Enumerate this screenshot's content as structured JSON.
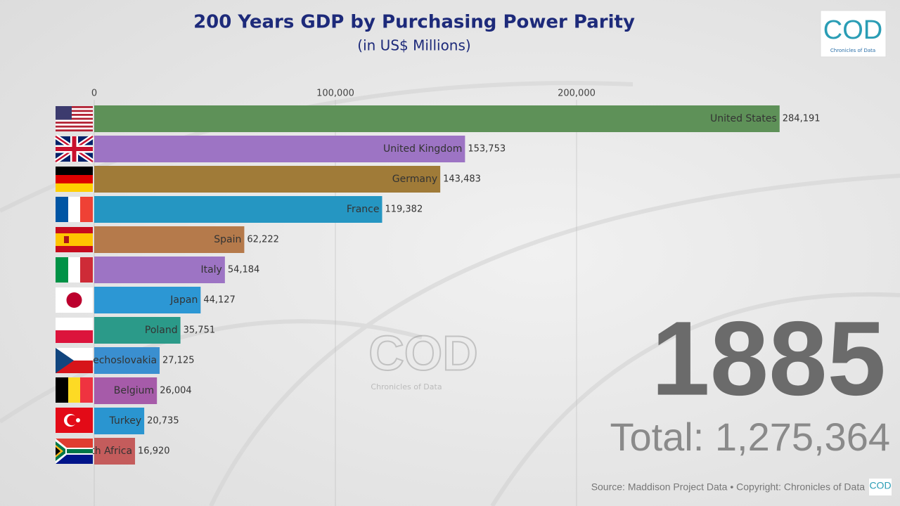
{
  "chart_data": {
    "type": "bar",
    "title": "200 Years GDP by Purchasing Power Parity",
    "subtitle": "(in US$ Millions)",
    "categories": [
      "United States",
      "United Kingdom",
      "Germany",
      "France",
      "Spain",
      "Italy",
      "Japan",
      "Poland",
      "Czechoslovakia",
      "Belgium",
      "Turkey",
      "South Africa"
    ],
    "values": [
      284191,
      153753,
      143483,
      119382,
      62222,
      54184,
      44127,
      35751,
      27125,
      26004,
      20735,
      16920
    ],
    "value_labels": [
      "284,191",
      "153,753",
      "143,483",
      "119,382",
      "62,222",
      "54,184",
      "44,127",
      "35,751",
      "27,125",
      "26,004",
      "20,735",
      "16,920"
    ],
    "colors": [
      "#5e9158",
      "#9d74c4",
      "#a07b38",
      "#2596c2",
      "#b57a4b",
      "#9d74c4",
      "#2c97d4",
      "#2b9a89",
      "#3a8fd0",
      "#a65ba9",
      "#2a95d0",
      "#c45c5c"
    ],
    "xlim": [
      0,
      300000
    ],
    "xticks": [
      0,
      {
        "value": 100000,
        "label": "100,000"
      },
      {
        "value": 200000,
        "label": "200,000"
      }
    ],
    "grid": true,
    "year": "1885",
    "total": "Total: 1,275,364",
    "source": "Source: Maddison Project Data • Copyright: Chronicles of Data"
  },
  "logo": {
    "text": "COD",
    "tagline": "Chronicles of Data"
  }
}
